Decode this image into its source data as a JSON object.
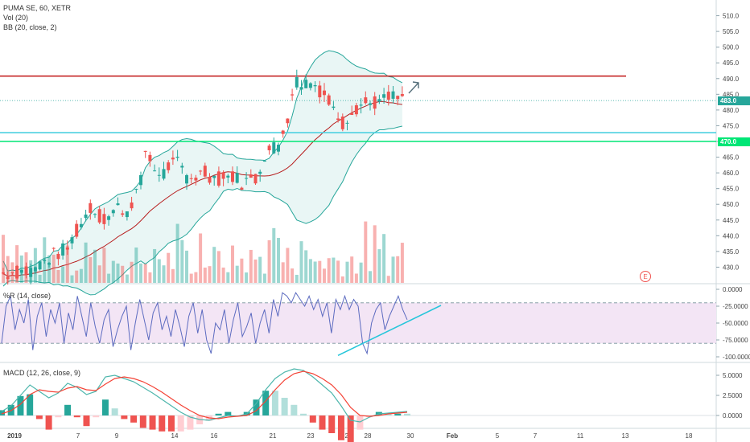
{
  "legend": {
    "symbol": "PUMA SE, 60, XETR",
    "volume": "Vol (20)",
    "bollinger": "BB (20, close, 2)",
    "williams": "%R (14, close)",
    "macd": "MACD (12, 26, close, 9)"
  },
  "price_tags": {
    "last": "483.0",
    "level": "470.0"
  },
  "earnings_marker": "E",
  "colors": {
    "up": "#26a69a",
    "down": "#ef5350",
    "bb_fill": "#e0f2f1",
    "bb_band": "#26a69a",
    "bb_basis": "#b71c1c",
    "resistance": "#c62828",
    "support_cyan": "#4dd0e1",
    "support_green": "#00e676",
    "wr_fill": "#f3e5f5",
    "wr_line": "#5c6bc0",
    "macd_line": "#4db6ac",
    "signal_line": "#f44336",
    "trend_line": "#26c6da"
  },
  "chart_data": [
    {
      "type": "candlestick",
      "title": "PUMA SE, 60, XETR",
      "y_axis": {
        "min": 425,
        "max": 515,
        "ticks": [
          "510.0",
          "505.0",
          "500.0",
          "495.0",
          "490.0",
          "485.0",
          "480.0",
          "475.0",
          "470.0",
          "465.0",
          "460.0",
          "455.0",
          "450.0",
          "445.0",
          "440.0",
          "435.0",
          "430.0"
        ]
      },
      "x_axis_ticks": [
        "2019",
        "7",
        "9",
        "14",
        "16",
        "21",
        "23",
        "25",
        "28",
        "30",
        "Feb",
        "5",
        "7",
        "11",
        "13",
        "18"
      ],
      "close_path": [
        [
          0,
          428
        ],
        [
          6,
          429
        ],
        [
          10,
          433
        ],
        [
          14,
          436
        ],
        [
          17,
          444
        ],
        [
          19,
          449
        ],
        [
          22,
          445
        ],
        [
          25,
          449
        ],
        [
          27,
          448
        ],
        [
          30,
          457
        ],
        [
          31,
          467
        ],
        [
          33,
          461
        ],
        [
          35,
          460
        ],
        [
          36,
          462
        ],
        [
          38,
          463
        ],
        [
          40,
          459
        ],
        [
          42,
          459
        ],
        [
          44,
          460
        ],
        [
          47,
          458
        ],
        [
          50,
          459
        ],
        [
          52,
          457
        ],
        [
          55,
          458
        ],
        [
          57,
          466
        ],
        [
          60,
          469
        ],
        [
          62,
          478
        ],
        [
          63,
          486
        ],
        [
          64,
          489
        ],
        [
          67,
          489
        ],
        [
          68,
          488
        ],
        [
          70,
          485
        ],
        [
          72,
          480
        ],
        [
          74,
          476
        ],
        [
          76,
          480
        ],
        [
          78,
          482
        ],
        [
          80,
          482
        ],
        [
          83,
          483
        ],
        [
          85,
          484
        ],
        [
          87,
          483
        ]
      ],
      "levels": [
        {
          "name": "resistance",
          "value": 490.8
        },
        {
          "name": "support-cyan",
          "value": 472.8
        },
        {
          "name": "support-green",
          "value": 470.0
        }
      ],
      "last_price": 483.0,
      "volume": "Vol (20)",
      "bollinger": "BB (20, close, 2)"
    },
    {
      "type": "line",
      "title": "%R (14, close)",
      "y_axis": {
        "min": -100,
        "max": 0,
        "ticks": [
          "0.0000",
          "-25.0000",
          "-50.0000",
          "-75.0000",
          "-100.0000"
        ]
      },
      "band": [
        -20,
        -80
      ],
      "series": [
        {
          "name": "%R",
          "values": [
            -80,
            -25,
            -10,
            -60,
            -30,
            -50,
            -15,
            -90,
            -40,
            -20,
            -70,
            -30,
            -50,
            -20,
            -80,
            -35,
            -60,
            -10,
            -40,
            -70,
            -20,
            -55,
            -80,
            -45,
            -30,
            -85,
            -60,
            -40,
            -25,
            -90,
            -50,
            -15,
            -45,
            -75,
            -35,
            -20,
            -60,
            -40,
            -70,
            -30,
            -55,
            -85,
            -40,
            -20,
            -65,
            -30,
            -75,
            -95,
            -50,
            -60,
            -30,
            -80,
            -45,
            -20,
            -70,
            -55,
            -35,
            -80,
            -50,
            -30,
            -65,
            -15,
            -40,
            -5,
            -10,
            -20,
            -5,
            -15,
            -25,
            -10,
            -30,
            -15,
            -40,
            -20,
            -65,
            -15,
            -30,
            -10,
            -30,
            -15,
            -25,
            -80,
            -95,
            -50,
            -30,
            -20,
            -60,
            -40,
            -25,
            -10,
            -30,
            -45
          ]
        }
      ],
      "trend_line": [
        [
          -98
        ],
        [
          -20
        ]
      ]
    },
    {
      "type": "line",
      "title": "MACD (12, 26, close, 9)",
      "y_axis": {
        "min": -1.5,
        "max": 6.5,
        "ticks": [
          "5.0000",
          "2.5000",
          "0.0000"
        ]
      },
      "series": [
        {
          "name": "MACD",
          "values": [
            0.5,
            1.2,
            2.5,
            3.8,
            3.0,
            2.2,
            2.8,
            4.0,
            3.5,
            2.6,
            3.0,
            4.8,
            5.0,
            4.6,
            4.2,
            3.5,
            2.8,
            2.0,
            1.2,
            0.4,
            -0.2,
            -0.5,
            -0.6,
            -0.3,
            0.0,
            -0.1,
            0.2,
            1.5,
            3.2,
            4.6,
            5.4,
            5.8,
            5.6,
            4.8,
            3.8,
            2.8,
            1.2,
            -0.6,
            -0.8,
            -0.2,
            0.2,
            0.3,
            0.4,
            0.5
          ]
        },
        {
          "name": "Signal",
          "values": [
            0.2,
            0.6,
            1.4,
            2.6,
            3.2,
            3.0,
            2.9,
            3.4,
            3.6,
            3.2,
            3.1,
            3.9,
            4.6,
            4.8,
            4.6,
            4.2,
            3.6,
            2.9,
            2.1,
            1.3,
            0.6,
            0.0,
            -0.3,
            -0.4,
            -0.2,
            -0.1,
            0.0,
            0.6,
            1.8,
            3.2,
            4.4,
            5.2,
            5.5,
            5.2,
            4.6,
            3.8,
            2.6,
            1.0,
            0.0,
            -0.1,
            0.0,
            0.2,
            0.3,
            0.4
          ]
        }
      ]
    }
  ]
}
